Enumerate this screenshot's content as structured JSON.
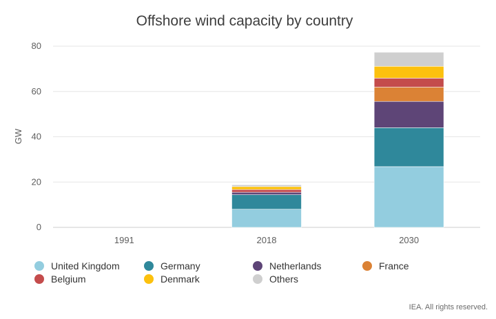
{
  "chart_data": {
    "type": "bar",
    "stacked": true,
    "title": "Offshore wind capacity by country",
    "xlabel": "",
    "ylabel": "GW",
    "ylim": [
      0,
      80
    ],
    "yticks": [
      0,
      20,
      40,
      60,
      80
    ],
    "categories": [
      "1991",
      "2018",
      "2030"
    ],
    "series": [
      {
        "name": "United Kingdom",
        "color": "#93cddf",
        "values": [
          0,
          8,
          26.8
        ]
      },
      {
        "name": "Germany",
        "color": "#2f889b",
        "values": [
          0,
          6.4,
          17.2
        ]
      },
      {
        "name": "Netherlands",
        "color": "#5e4577",
        "values": [
          0,
          1.1,
          11.6
        ]
      },
      {
        "name": "France",
        "color": "#db8235",
        "values": [
          0,
          0,
          6.3
        ]
      },
      {
        "name": "Belgium",
        "color": "#c44c4c",
        "values": [
          0,
          1.2,
          4
        ]
      },
      {
        "name": "Denmark",
        "color": "#fcc10e",
        "values": [
          0,
          1.3,
          5.2
        ]
      },
      {
        "name": "Others",
        "color": "#cfcfcf",
        "values": [
          0,
          0.8,
          6.2
        ]
      }
    ],
    "legend_position": "bottom"
  },
  "footer": "IEA. All rights reserved.",
  "colors": {
    "grid": "#e6e6e6",
    "axis": "#cccccc"
  }
}
